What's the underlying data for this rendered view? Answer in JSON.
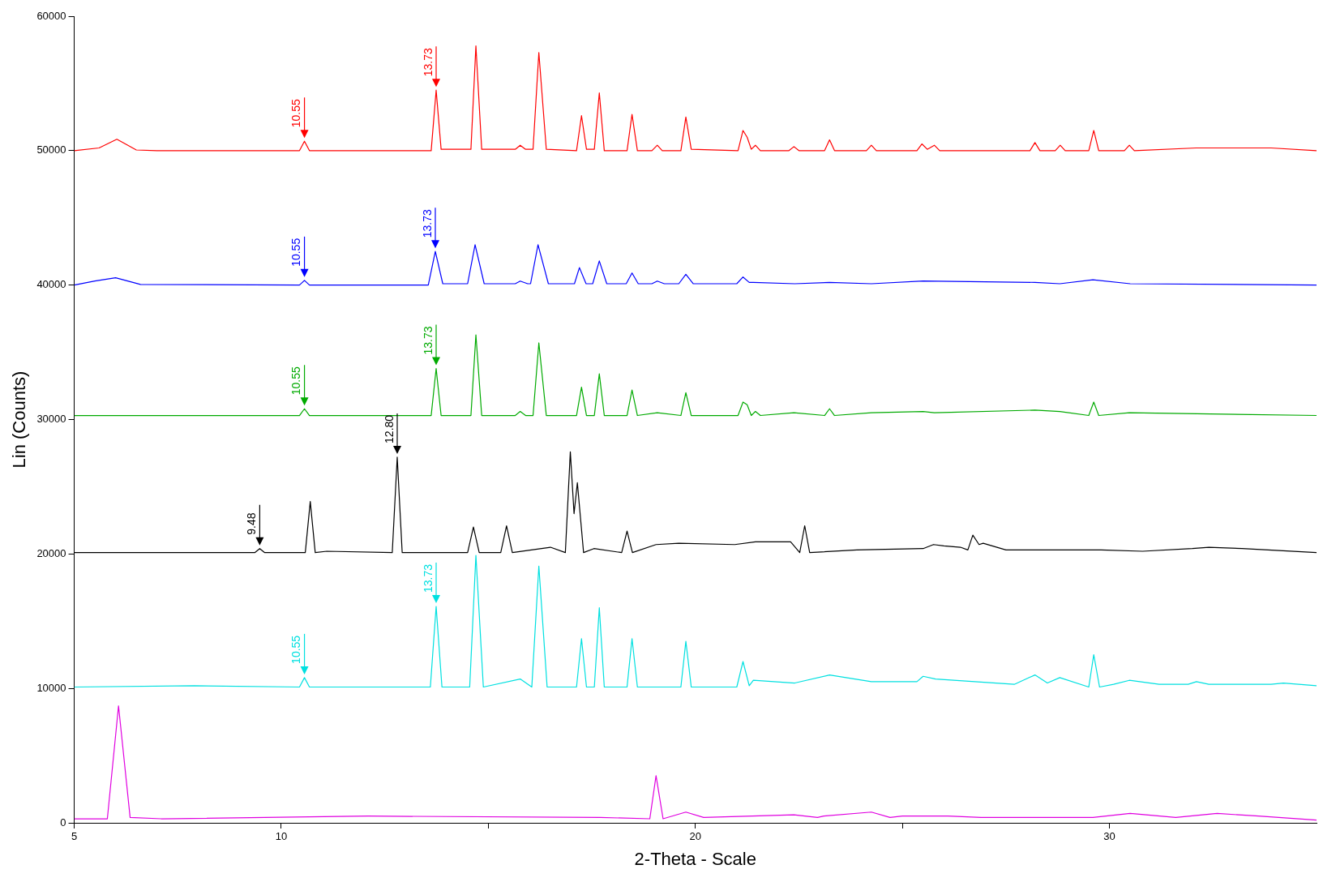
{
  "chart_data": {
    "type": "line",
    "xlabel": "2-Theta - Scale",
    "ylabel": "Lin (Counts)",
    "xlim": [
      5,
      35
    ],
    "xticks": [
      5,
      10,
      {
        "value": 15,
        "label": null
      },
      20,
      {
        "value": 25,
        "label": null
      },
      30
    ],
    "ylim": [
      0,
      60000
    ],
    "yticks": [
      0,
      10000,
      20000,
      30000,
      40000,
      50000,
      60000
    ],
    "grid": false,
    "legend": false,
    "marker": "none",
    "line_style": "solid",
    "series": [
      {
        "color": "#ff0000",
        "x": [
          5,
          5.6,
          6.03,
          6.5,
          7,
          10.44,
          10.56,
          10.68,
          13.62,
          13.74,
          13.86,
          14.58,
          14.7,
          14.84,
          15.65,
          15.77,
          15.9,
          16.08,
          16.22,
          16.4,
          17.13,
          17.25,
          17.37,
          17.56,
          17.68,
          17.8,
          18.35,
          18.47,
          18.6,
          18.95,
          19.08,
          19.2,
          19.65,
          19.77,
          19.9,
          21.03,
          21.15,
          21.25,
          21.35,
          21.45,
          21.57,
          22.26,
          22.38,
          22.5,
          23.12,
          23.24,
          23.36,
          24.13,
          24.25,
          24.37,
          25.35,
          25.47,
          25.6,
          25.77,
          25.9,
          28.08,
          28.2,
          28.32,
          28.69,
          28.81,
          28.93,
          29.5,
          29.62,
          29.74,
          30.36,
          30.48,
          30.6,
          32.1,
          33.9,
          35
        ],
        "values": [
          50000,
          50200,
          50850,
          50050,
          50000,
          50000,
          50700,
          50000,
          50000,
          54500,
          50100,
          50100,
          57800,
          50100,
          50100,
          50400,
          50100,
          50100,
          57300,
          50100,
          50000,
          52600,
          50100,
          50100,
          54300,
          50000,
          50000,
          52700,
          50000,
          50000,
          50400,
          50000,
          50000,
          52500,
          50100,
          50000,
          51500,
          51000,
          50100,
          50400,
          50000,
          50000,
          50300,
          50000,
          50000,
          50800,
          50000,
          50000,
          50400,
          50000,
          50000,
          50500,
          50100,
          50400,
          50000,
          50000,
          50600,
          50000,
          50000,
          50400,
          50000,
          50000,
          51500,
          50000,
          50000,
          50400,
          50000,
          50200,
          50200,
          50000
        ]
      },
      {
        "color": "#0000ff",
        "x": [
          5,
          5.5,
          6,
          6.6,
          10.44,
          10.56,
          10.68,
          13.55,
          13.72,
          13.9,
          14.5,
          14.68,
          14.9,
          15.65,
          15.77,
          15.95,
          16.02,
          16.2,
          16.45,
          17.08,
          17.2,
          17.36,
          17.52,
          17.68,
          17.86,
          18.33,
          18.47,
          18.62,
          18.95,
          19.08,
          19.25,
          19.6,
          19.77,
          19.95,
          21,
          21.15,
          21.3,
          21.4,
          22.4,
          23.24,
          24.25,
          25.5,
          28.2,
          28.8,
          29.6,
          30.5,
          35
        ],
        "values": [
          40000,
          40300,
          40550,
          40050,
          40000,
          40350,
          40000,
          40000,
          42500,
          40100,
          40100,
          43000,
          40100,
          40100,
          40300,
          40100,
          40100,
          43000,
          40100,
          40100,
          41300,
          40100,
          40100,
          41800,
          40100,
          40100,
          40900,
          40100,
          40100,
          40300,
          40100,
          40100,
          40800,
          40100,
          40100,
          40600,
          40200,
          40200,
          40100,
          40200,
          40100,
          40300,
          40200,
          40100,
          40400,
          40100,
          40000
        ]
      },
      {
        "color": "#00aa00",
        "x": [
          5,
          10.44,
          10.56,
          10.68,
          13.62,
          13.74,
          13.86,
          14.58,
          14.7,
          14.84,
          15.65,
          15.77,
          15.9,
          16.08,
          16.22,
          16.4,
          17.13,
          17.25,
          17.37,
          17.56,
          17.68,
          17.8,
          18.35,
          18.47,
          18.6,
          19.08,
          19.65,
          19.77,
          19.9,
          21.03,
          21.15,
          21.25,
          21.35,
          21.45,
          21.57,
          22.38,
          23.12,
          23.24,
          23.36,
          24.25,
          25.5,
          25.77,
          28.2,
          28.8,
          29.5,
          29.62,
          29.74,
          30.48,
          35
        ],
        "values": [
          30300,
          30300,
          30800,
          30300,
          30300,
          33800,
          30300,
          30300,
          36300,
          30300,
          30300,
          30600,
          30300,
          30300,
          35700,
          30300,
          30300,
          32400,
          30300,
          30300,
          33400,
          30300,
          30300,
          32200,
          30300,
          30500,
          30300,
          32000,
          30300,
          30300,
          31300,
          31100,
          30300,
          30600,
          30300,
          30500,
          30300,
          30800,
          30300,
          30500,
          30600,
          30500,
          30700,
          30600,
          30300,
          31300,
          30300,
          30500,
          30300
        ]
      },
      {
        "color": "#000000",
        "x": [
          5,
          9.36,
          9.48,
          9.6,
          10.58,
          10.7,
          10.82,
          11.1,
          12.68,
          12.8,
          12.92,
          14.5,
          14.64,
          14.78,
          15.3,
          15.44,
          15.58,
          16.5,
          16.86,
          16.98,
          17.07,
          17.15,
          17.3,
          17.55,
          18.22,
          18.35,
          18.48,
          19.05,
          19.6,
          20.95,
          21.45,
          22.3,
          22.52,
          22.64,
          22.76,
          23.9,
          25.5,
          25.75,
          26,
          26.4,
          26.58,
          26.7,
          26.85,
          26.95,
          27.5,
          28.15,
          29.5,
          29.8,
          30.8,
          32,
          32.4,
          33.2,
          35
        ],
        "values": [
          20100,
          20100,
          20400,
          20100,
          20100,
          23900,
          20100,
          20200,
          20100,
          27200,
          20100,
          20100,
          22000,
          20100,
          20100,
          22100,
          20100,
          20500,
          20100,
          27600,
          23000,
          25300,
          20100,
          20400,
          20100,
          21700,
          20100,
          20700,
          20800,
          20700,
          20900,
          20900,
          20100,
          22100,
          20100,
          20300,
          20400,
          20700,
          20600,
          20500,
          20300,
          21400,
          20700,
          20800,
          20300,
          20300,
          20300,
          20300,
          20200,
          20400,
          20500,
          20400,
          20100
        ]
      },
      {
        "color": "#00e0e0",
        "x": [
          5,
          7.9,
          10.44,
          10.56,
          10.68,
          13.6,
          13.74,
          13.88,
          14.55,
          14.7,
          14.88,
          15.77,
          16.05,
          16.22,
          16.42,
          17.13,
          17.25,
          17.37,
          17.56,
          17.68,
          17.8,
          18.35,
          18.47,
          18.6,
          19.65,
          19.77,
          19.9,
          21,
          21.15,
          21.3,
          21.4,
          22.4,
          23.24,
          24.25,
          25.35,
          25.5,
          25.8,
          27.7,
          28.2,
          28.5,
          28.8,
          29.5,
          29.62,
          29.76,
          30.1,
          30.48,
          31.2,
          31.9,
          32.1,
          32.4,
          33.5,
          33.9,
          34.2,
          35
        ],
        "values": [
          10100,
          10200,
          10100,
          10800,
          10100,
          10100,
          16100,
          10100,
          10100,
          19900,
          10100,
          10700,
          10100,
          19100,
          10100,
          10100,
          13700,
          10100,
          10100,
          16000,
          10100,
          10100,
          13700,
          10100,
          10100,
          13500,
          10100,
          10100,
          12000,
          10200,
          10600,
          10400,
          11000,
          10500,
          10500,
          10900,
          10700,
          10300,
          11000,
          10400,
          10800,
          10100,
          12500,
          10100,
          10300,
          10600,
          10300,
          10300,
          10500,
          10300,
          10300,
          10300,
          10400,
          10200
        ]
      },
      {
        "color": "#e000e0",
        "x": [
          5,
          5.8,
          6.07,
          6.35,
          7.1,
          12.1,
          17.7,
          18.9,
          19.05,
          19.22,
          19.77,
          20.2,
          22.38,
          22.95,
          23.1,
          24.25,
          24.7,
          25,
          26.1,
          26.9,
          29.6,
          30.5,
          31.6,
          32.6,
          33.6,
          35
        ],
        "values": [
          300,
          300,
          8700,
          400,
          300,
          500,
          400,
          300,
          3500,
          300,
          800,
          400,
          600,
          400,
          500,
          800,
          400,
          500,
          500,
          400,
          400,
          700,
          400,
          700,
          500,
          200
        ]
      }
    ],
    "annotations": [
      {
        "text": "10.55",
        "x": 10.56,
        "y": 50700
      },
      {
        "text": "13.73",
        "x": 13.74,
        "y": 54500
      },
      {
        "text": "10.55",
        "x": 10.56,
        "y": 40350
      },
      {
        "text": "13.73",
        "x": 13.72,
        "y": 42500
      },
      {
        "text": "10.55",
        "x": 10.56,
        "y": 30800
      },
      {
        "text": "13.73",
        "x": 13.74,
        "y": 33800
      },
      {
        "text": "9.48",
        "x": 9.48,
        "y": 20400
      },
      {
        "text": "12.80",
        "x": 12.8,
        "y": 27200
      },
      {
        "text": "10.55",
        "x": 10.56,
        "y": 10800
      },
      {
        "text": "13.73",
        "x": 13.74,
        "y": 16100
      }
    ]
  }
}
